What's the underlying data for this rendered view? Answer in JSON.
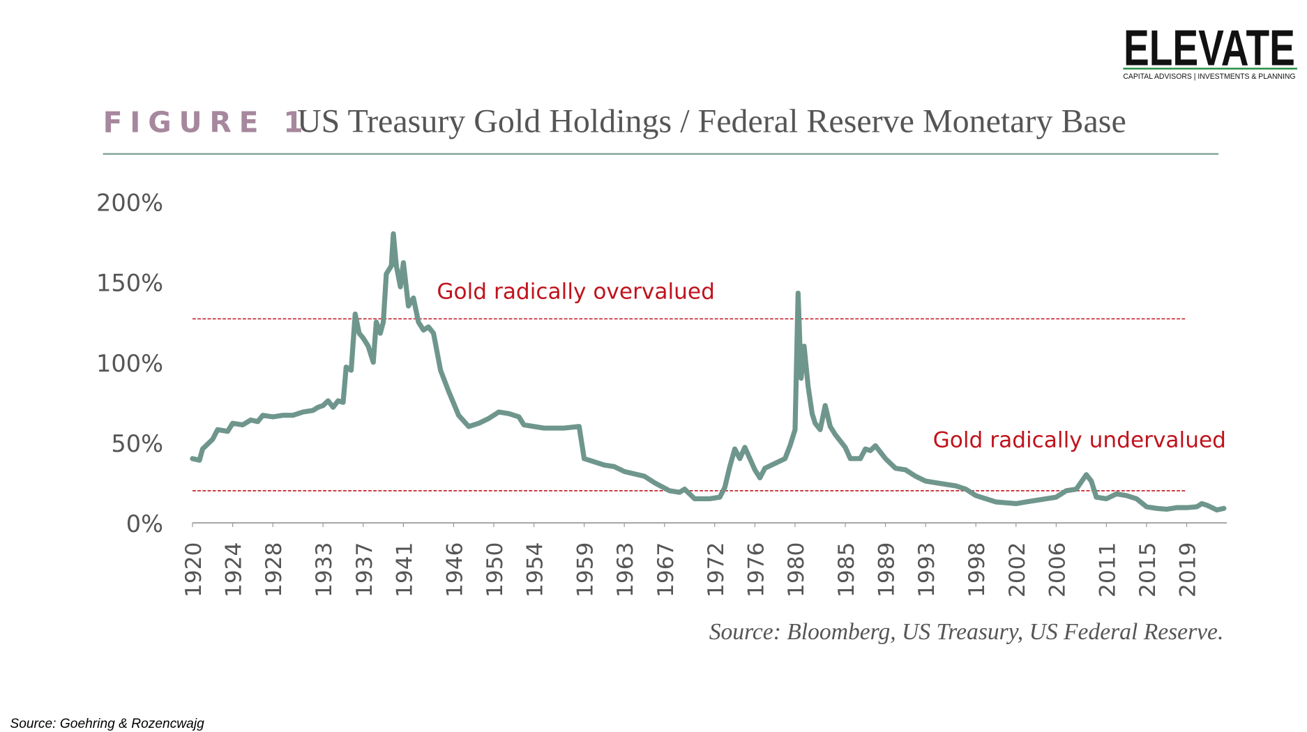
{
  "logo": {
    "name": "ELEVATE",
    "tagline": "CAPITAL ADVISORS | INVESTMENTS & PLANNING"
  },
  "chart_data": {
    "type": "line",
    "figure_label": "FIGURE 1",
    "title": "US Treasury Gold Holdings / Federal Reserve Monetary Base",
    "source": "Source: Bloomberg, US Treasury, US Federal Reserve.",
    "color": "#6f968c",
    "x": [
      1920,
      1920.7,
      1921,
      1922,
      1922.5,
      1923.5,
      1924,
      1925,
      1925.8,
      1926.5,
      1927,
      1928,
      1929,
      1930,
      1931,
      1932,
      1932.5,
      1933,
      1933.5,
      1934,
      1934.5,
      1935,
      1935.3,
      1935.8,
      1936.2,
      1936.6,
      1937,
      1937.5,
      1938,
      1938.3,
      1938.7,
      1939,
      1939.3,
      1939.8,
      1940,
      1940.3,
      1940.7,
      1941,
      1941.5,
      1942,
      1942.5,
      1943,
      1943.5,
      1944,
      1944.7,
      1945.5,
      1946.5,
      1947.5,
      1948.5,
      1949.5,
      1950.5,
      1951.5,
      1952.5,
      1953,
      1955,
      1957,
      1958.5,
      1959,
      1960,
      1961,
      1962,
      1963,
      1965,
      1966,
      1967.5,
      1968.5,
      1969,
      1970,
      1971.5,
      1972.5,
      1973,
      1973.5,
      1974,
      1974.5,
      1975,
      1975.5,
      1976,
      1976.5,
      1977,
      1978,
      1979,
      1979.5,
      1980,
      1980.3,
      1980.6,
      1980.9,
      1981.3,
      1981.7,
      1982,
      1982.5,
      1983,
      1983.5,
      1984,
      1985,
      1985.5,
      1986.5,
      1987,
      1987.5,
      1988,
      1989,
      1990,
      1991,
      1992,
      1993,
      1994,
      1995,
      1996,
      1997,
      1998,
      1999,
      2000,
      2001,
      2002,
      2003,
      2004,
      2005,
      2006,
      2007,
      2008,
      2009,
      2009.5,
      2010,
      2011,
      2012,
      2013,
      2014,
      2015,
      2016,
      2017,
      2018,
      2019,
      2020,
      2020.5,
      2021,
      2022,
      2022.7
    ],
    "values": [
      40,
      39,
      46,
      52,
      58,
      57,
      62,
      61,
      64,
      63,
      67,
      66,
      67,
      67,
      69,
      70,
      72,
      73,
      76,
      72,
      76,
      75,
      97,
      95,
      130,
      118,
      115,
      110,
      100,
      125,
      118,
      125,
      155,
      160,
      180,
      160,
      147,
      162,
      135,
      140,
      125,
      120,
      122,
      118,
      95,
      82,
      67,
      60,
      62,
      65,
      69,
      68,
      66,
      61,
      59,
      59,
      60,
      40,
      38,
      36,
      35,
      32,
      29,
      25,
      20,
      19,
      21,
      15,
      15,
      16,
      22,
      35,
      46,
      40,
      47,
      40,
      33,
      28,
      34,
      37,
      40,
      48,
      58,
      143,
      90,
      110,
      85,
      68,
      62,
      58,
      73,
      60,
      55,
      47,
      40,
      40,
      46,
      45,
      48,
      40,
      34,
      33,
      29,
      26,
      25,
      24,
      23,
      21,
      17,
      15,
      13,
      12.5,
      12,
      13,
      14,
      15,
      16,
      20,
      21,
      30,
      26,
      16,
      15,
      18,
      17,
      15,
      10,
      9,
      8.5,
      9.5,
      9.5,
      10,
      12,
      11,
      8,
      9
    ],
    "xlim": [
      1920,
      2023
    ],
    "xticks": [
      1920,
      1924,
      1928,
      1933,
      1937,
      1941,
      1946,
      1950,
      1954,
      1959,
      1963,
      1967,
      1972,
      1976,
      1980,
      1985,
      1989,
      1993,
      1998,
      2002,
      2006,
      2011,
      2015,
      2019
    ],
    "ylim": [
      0,
      200
    ],
    "yticks": [
      {
        "value": 0,
        "label": "0%"
      },
      {
        "value": 50,
        "label": "50%"
      },
      {
        "value": 100,
        "label": "100%"
      },
      {
        "value": 150,
        "label": "150%"
      },
      {
        "value": 200,
        "label": "200%"
      }
    ],
    "reference_lines": [
      {
        "value": 127,
        "label": "Gold radically overvalued"
      },
      {
        "value": 20,
        "label": "Gold radically undervalued"
      }
    ],
    "reference_color": "#c0121c"
  },
  "footer": "Source: Goehring & Rozencwajg"
}
